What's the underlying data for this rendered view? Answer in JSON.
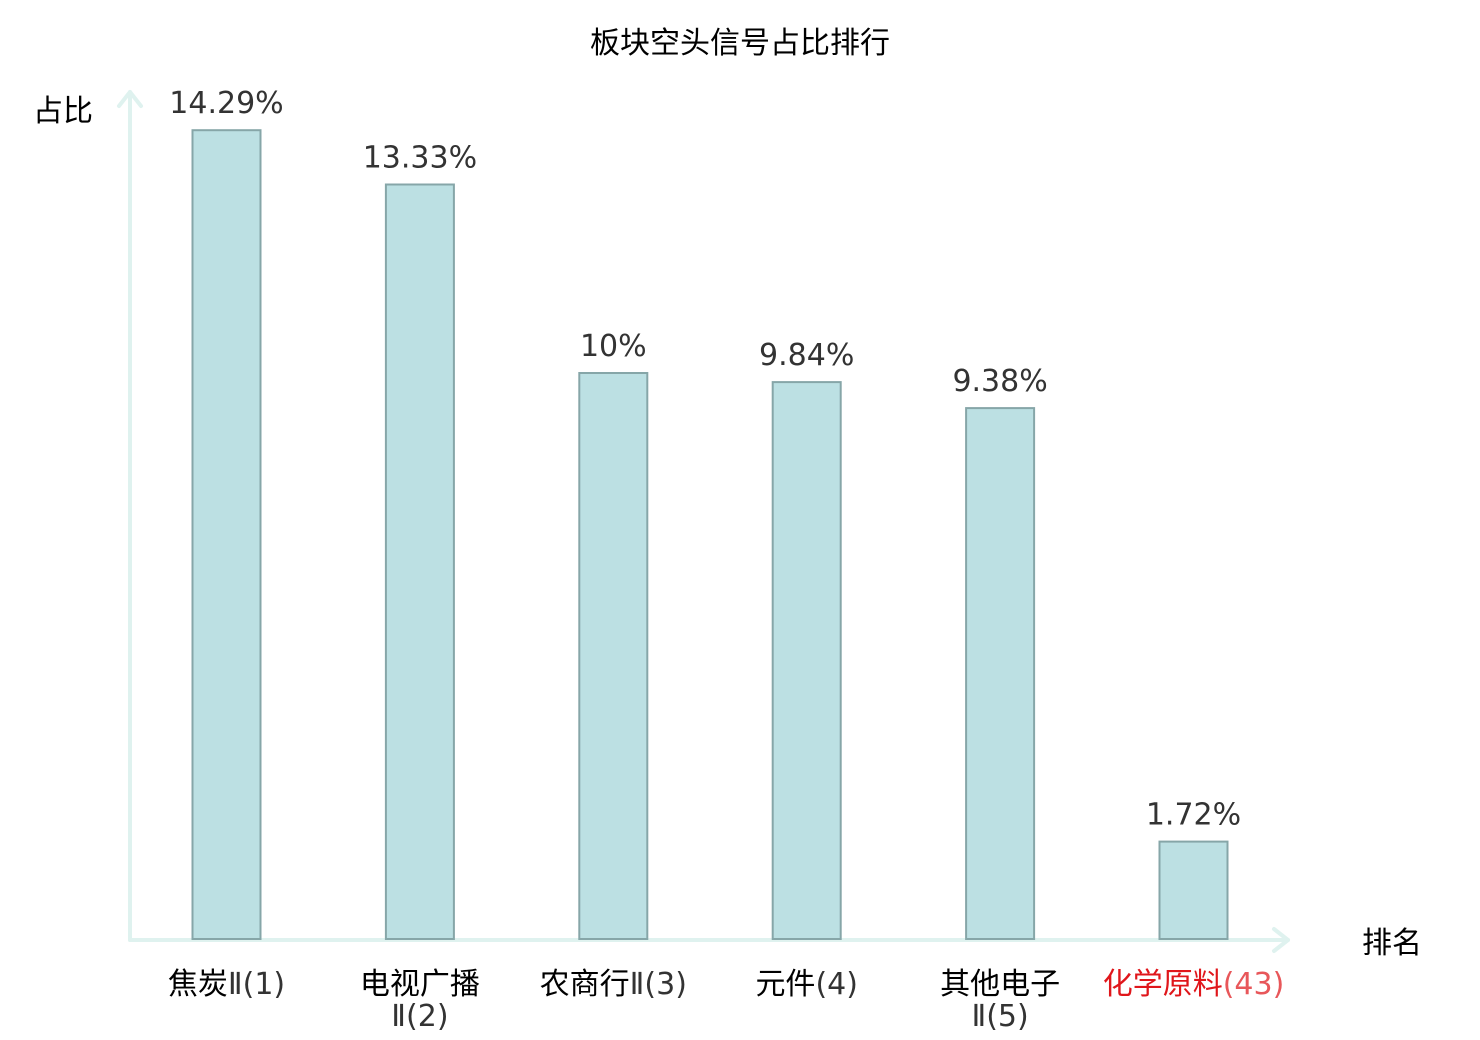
{
  "chart_data": {
    "type": "bar",
    "title": "板块空头信号占比排行",
    "ylabel": "占比",
    "xlabel": "排名",
    "ylim": [
      0,
      15
    ],
    "grid": false,
    "categories": [
      {
        "lines": [
          {
            "main": "焦炭",
            "suffix": "Ⅱ(1)"
          }
        ]
      },
      {
        "lines": [
          {
            "main": "电视广播",
            "suffix": ""
          },
          {
            "main": "",
            "suffix": "Ⅱ(2)"
          }
        ]
      },
      {
        "lines": [
          {
            "main": "农商行",
            "suffix": "Ⅱ(3)"
          }
        ]
      },
      {
        "lines": [
          {
            "main": "元件",
            "suffix": "(4)"
          }
        ]
      },
      {
        "lines": [
          {
            "main": "其他电子",
            "suffix": ""
          },
          {
            "main": "",
            "suffix": "Ⅱ(5)"
          }
        ]
      },
      {
        "lines": [
          {
            "main": "化学原料",
            "suffix": "(43)"
          }
        ],
        "highlight": true
      }
    ],
    "values": [
      14.29,
      13.33,
      10,
      9.84,
      9.38,
      1.72
    ],
    "value_labels": [
      "14.29%",
      "13.33%",
      "10%",
      "9.84%",
      "9.38%",
      "1.72%"
    ]
  },
  "colors": {
    "bar_fill": "#bce0e3",
    "bar_stroke": "#86a6a8",
    "axis": "#dff2ef",
    "highlight": "#e0161b",
    "highlight_suffix": "#e8575a"
  }
}
